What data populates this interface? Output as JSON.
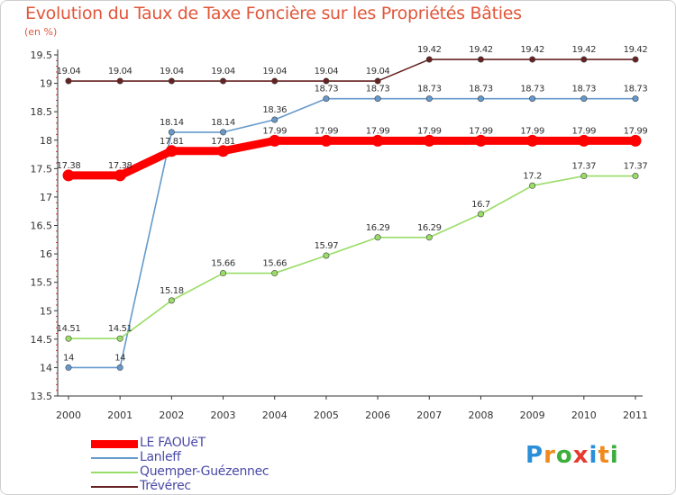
{
  "chart_data": {
    "type": "line",
    "title": "Evolution du Taux de Taxe Foncière sur les Propriétés Bâties",
    "unit_label": "(en %)",
    "x": [
      "2000",
      "2001",
      "2002",
      "2003",
      "2004",
      "2005",
      "2006",
      "2007",
      "2008",
      "2009",
      "2010",
      "2011"
    ],
    "ylim": [
      13.5,
      19.5
    ],
    "yticks": [
      "13.5",
      "14",
      "14.5",
      "15",
      "15.5",
      "16",
      "16.5",
      "17",
      "17.5",
      "18",
      "18.5",
      "19",
      "19.5"
    ],
    "grid": false,
    "legend_position": "bottom-left",
    "series": [
      {
        "name": "LE FAOUëT",
        "color": "#ff0000",
        "values": [
          17.38,
          17.38,
          17.81,
          17.81,
          17.99,
          17.99,
          17.99,
          17.99,
          17.99,
          17.99,
          17.99,
          17.99
        ],
        "labels": [
          "17.38",
          "17.38",
          "17.81",
          "17.81",
          "17.99",
          "17.99",
          "17.99",
          "17.99",
          "17.99",
          "17.99",
          "17.99",
          "17.99"
        ]
      },
      {
        "name": "Lanleff",
        "color": "#6699cc",
        "values": [
          14,
          14,
          18.14,
          18.14,
          18.36,
          18.73,
          18.73,
          18.73,
          18.73,
          18.73,
          18.73,
          18.73
        ],
        "labels": [
          "14",
          "14",
          "18.14",
          "18.14",
          "18.36",
          "18.73",
          "18.73",
          "18.73",
          "18.73",
          "18.73",
          "18.73",
          "18.73"
        ]
      },
      {
        "name": "Quemper-Guézennec",
        "color": "#99dd66",
        "values": [
          14.51,
          14.51,
          15.18,
          15.66,
          15.66,
          15.97,
          16.29,
          16.29,
          16.7,
          17.2,
          17.37,
          17.37
        ],
        "labels": [
          "14.51",
          "14.51",
          "15.18",
          "15.66",
          "15.66",
          "15.97",
          "16.29",
          "16.29",
          "16.7",
          "17.2",
          "17.37",
          "17.37"
        ]
      },
      {
        "name": "Trévérec",
        "color": "#662222",
        "values": [
          19.04,
          19.04,
          19.04,
          19.04,
          19.04,
          19.04,
          19.04,
          19.42,
          19.42,
          19.42,
          19.42,
          19.42
        ],
        "labels": [
          "19.04",
          "19.04",
          "19.04",
          "19.04",
          "19.04",
          "19.04",
          "19.04",
          "19.42",
          "19.42",
          "19.42",
          "19.42",
          "19.42"
        ]
      }
    ]
  },
  "logo": {
    "letters": [
      "P",
      "r",
      "o",
      "x",
      "i",
      "t",
      "i"
    ],
    "colors": [
      "#2a8fd8",
      "#f08a1e",
      "#3cae3c",
      "#e53a2f",
      "#2a8fd8",
      "#f08a1e",
      "#3cae3c"
    ]
  }
}
